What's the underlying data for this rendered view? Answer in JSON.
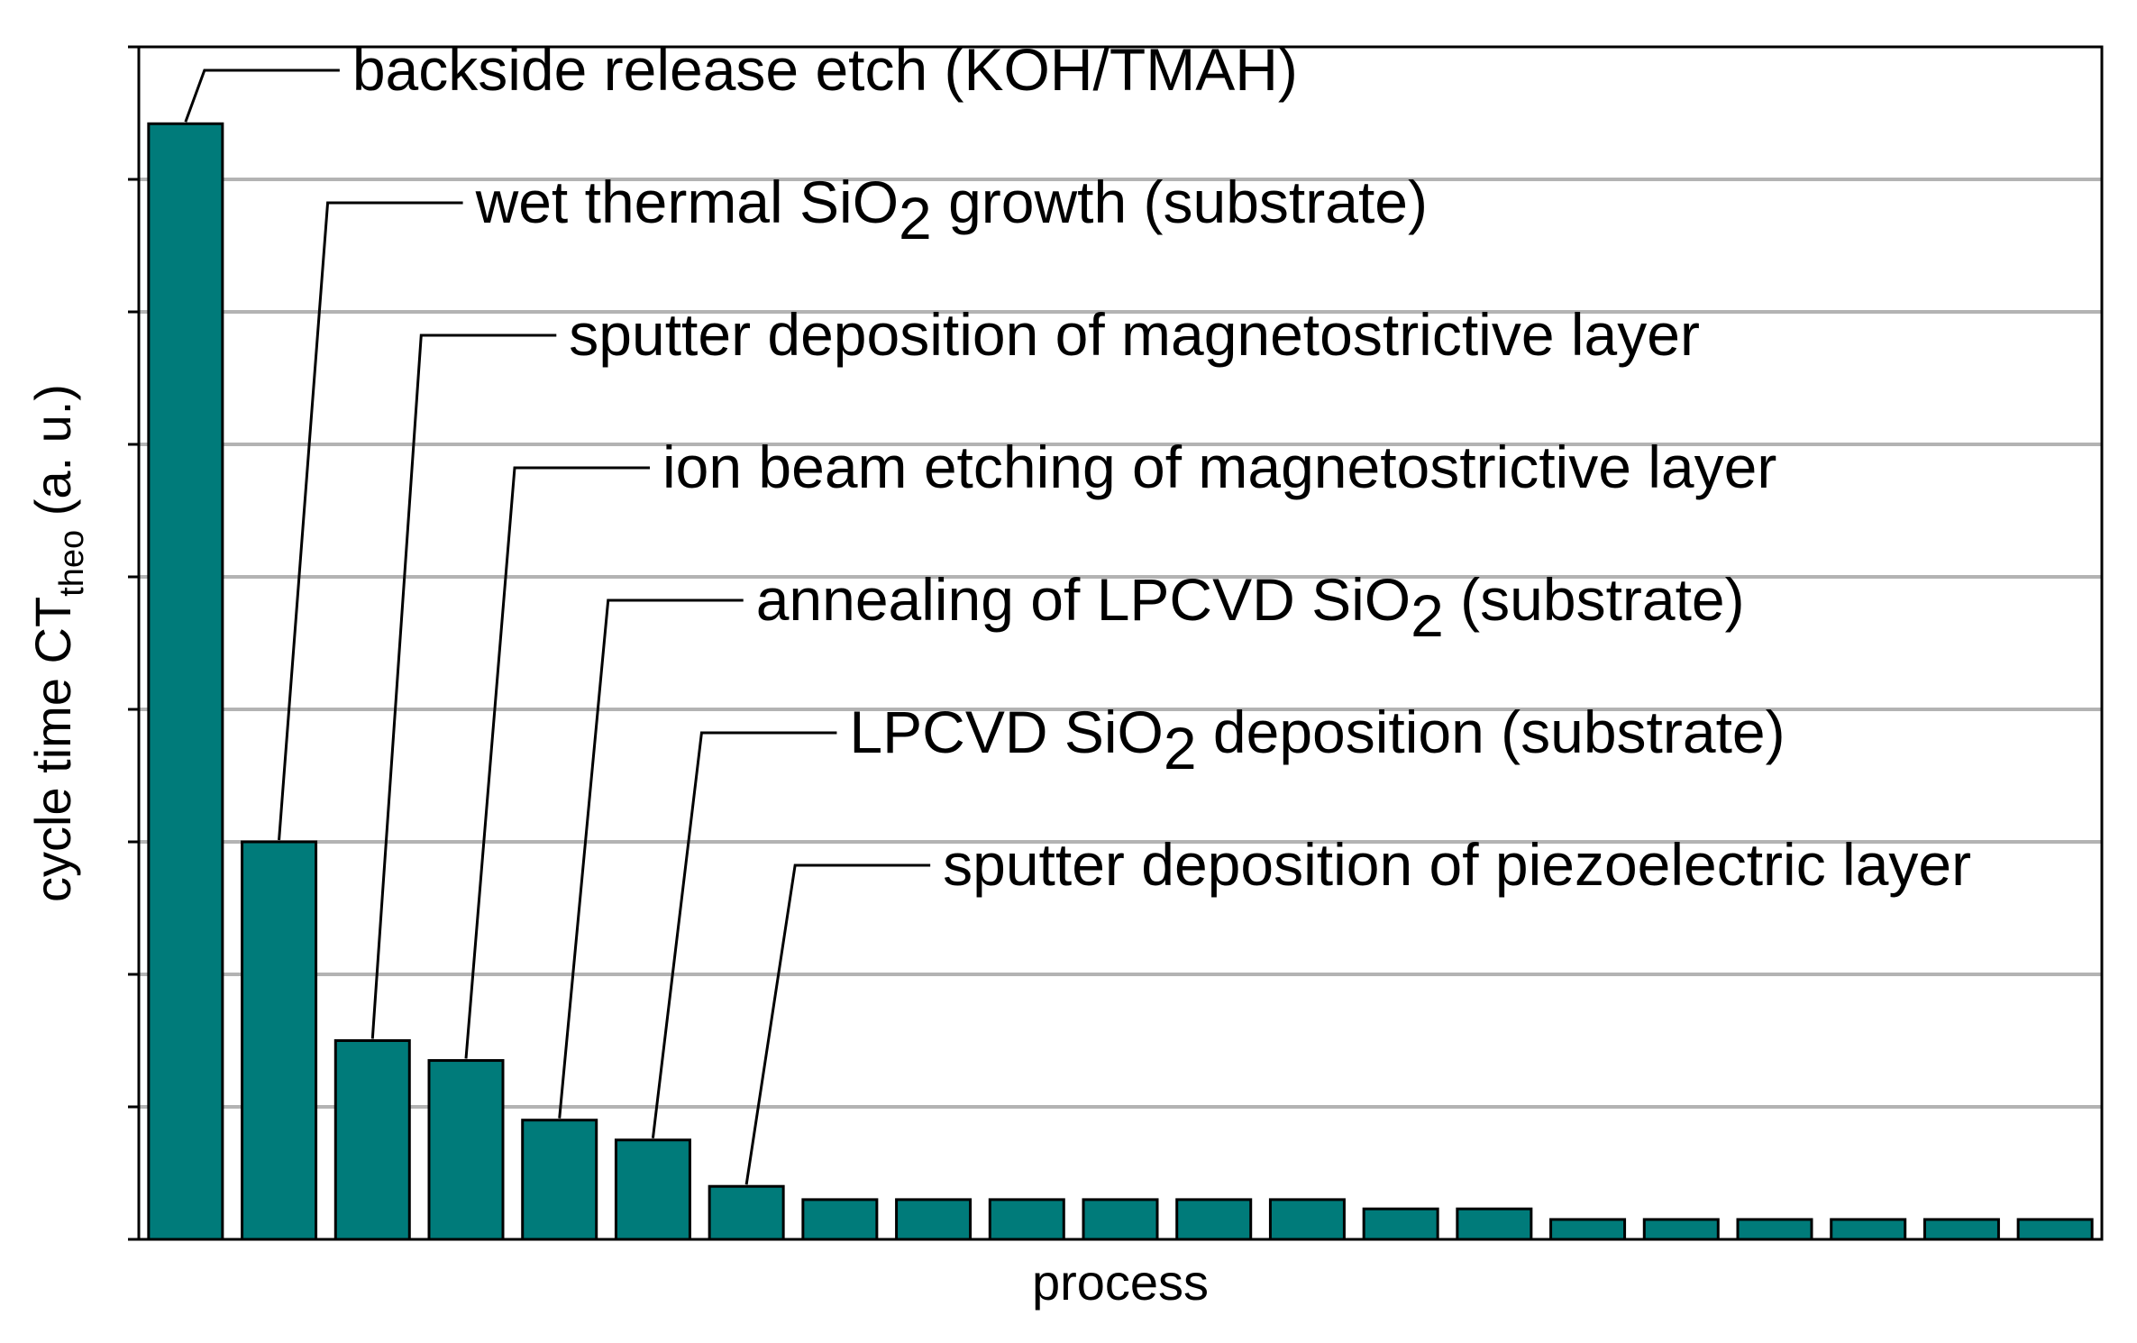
{
  "chart_data": {
    "type": "bar",
    "title": "",
    "xlabel": "process",
    "ylabel": {
      "main": "cycle time CT",
      "subscript": "theo",
      "suffix": " (a. u.)"
    },
    "y_tick_count": 9,
    "ylim": [
      0,
      9
    ],
    "grid": true,
    "tick_labels_shown": false,
    "bar_color": "#007b7a",
    "grid_color": "#b3b3b3",
    "values": [
      8.42,
      3.0,
      1.5,
      1.35,
      0.9,
      0.75,
      0.4,
      0.3,
      0.3,
      0.3,
      0.3,
      0.3,
      0.3,
      0.23,
      0.23,
      0.15,
      0.15,
      0.15,
      0.15,
      0.15,
      0.15
    ],
    "annotations": [
      {
        "bar": 0,
        "parts": [
          {
            "t": "backside release etch (KOH/TMAH)"
          }
        ]
      },
      {
        "bar": 1,
        "parts": [
          {
            "t": "wet thermal SiO"
          },
          {
            "t": "2",
            "sub": true
          },
          {
            "t": " growth (substrate)"
          }
        ]
      },
      {
        "bar": 2,
        "parts": [
          {
            "t": "sputter deposition of magnetostrictive layer"
          }
        ]
      },
      {
        "bar": 3,
        "parts": [
          {
            "t": "ion beam etching of magnetostrictive layer"
          }
        ]
      },
      {
        "bar": 4,
        "parts": [
          {
            "t": "annealing of LPCVD SiO"
          },
          {
            "t": "2",
            "sub": true
          },
          {
            "t": " (substrate)"
          }
        ]
      },
      {
        "bar": 5,
        "parts": [
          {
            "t": "LPCVD SiO"
          },
          {
            "t": "2",
            "sub": true
          },
          {
            "t": " deposition (substrate)"
          }
        ]
      },
      {
        "bar": 6,
        "parts": [
          {
            "t": "sputter deposition of piezoelectric layer"
          }
        ]
      }
    ]
  }
}
